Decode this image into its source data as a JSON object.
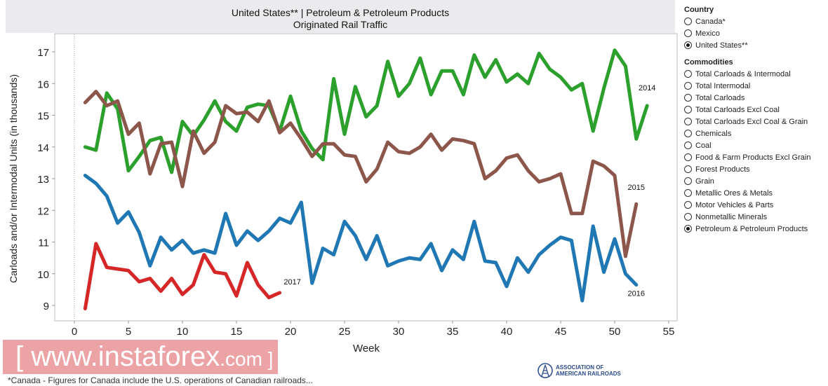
{
  "header": {
    "title_line1": "United States** | Petroleum & Petroleum Products",
    "title_line2": "Originated Rail Traffic"
  },
  "sidebar": {
    "country_title": "Country",
    "countries": [
      {
        "label": "Canada*",
        "selected": false
      },
      {
        "label": "Mexico",
        "selected": false
      },
      {
        "label": "United States**",
        "selected": true
      }
    ],
    "commodities_title": "Commodities",
    "commodities": [
      {
        "label": "Total Carloads & Intermodal",
        "selected": false
      },
      {
        "label": "Total Intermodal",
        "selected": false
      },
      {
        "label": "Total Carloads",
        "selected": false
      },
      {
        "label": "Total Carloads Excl Coal",
        "selected": false
      },
      {
        "label": "Total Carloads Excl Coal & Grain",
        "selected": false
      },
      {
        "label": "Chemicals",
        "selected": false
      },
      {
        "label": "Coal",
        "selected": false
      },
      {
        "label": "Food & Farm Products Excl Grain",
        "selected": false
      },
      {
        "label": "Forest Products",
        "selected": false
      },
      {
        "label": "Grain",
        "selected": false
      },
      {
        "label": "Metallic Ores & Metals",
        "selected": false
      },
      {
        "label": "Motor Vehicles & Parts",
        "selected": false
      },
      {
        "label": "Nonmetallic Minerals",
        "selected": false
      },
      {
        "label": "Petroleum & Petroleum Products",
        "selected": true
      }
    ]
  },
  "footer": {
    "footnote": "*Canada - Figures for Canada include the U.S. operations of Canadian railroads...",
    "logo_text_line1": "ASSOCIATION OF",
    "logo_text_line2": "AMERICAN RAILROADS",
    "watermark_main": "[ www.instaforex",
    "watermark_com": ".com ]"
  },
  "chart_data": {
    "type": "line",
    "title": "",
    "xlabel": "Week",
    "ylabel": "Carloads and/or Intermodal Units (in thousands)",
    "xlim": [
      -2,
      56
    ],
    "ylim": [
      8.6,
      17.5
    ],
    "xticks": [
      0,
      5,
      10,
      15,
      20,
      25,
      30,
      35,
      40,
      45,
      50,
      55
    ],
    "yticks": [
      9,
      10,
      11,
      12,
      13,
      14,
      15,
      16,
      17
    ],
    "grid": false,
    "series": [
      {
        "name": "2014",
        "color": "#2ca02c",
        "start_week": 1,
        "values": [
          14.0,
          13.9,
          15.7,
          15.2,
          13.25,
          13.7,
          14.2,
          14.3,
          13.2,
          14.8,
          14.35,
          14.85,
          15.45,
          14.8,
          14.5,
          15.25,
          15.35,
          15.3,
          14.5,
          15.6,
          14.5,
          13.95,
          13.6,
          16.15,
          14.4,
          15.9,
          14.95,
          15.3,
          16.7,
          15.6,
          16.0,
          16.8,
          15.65,
          16.4,
          16.4,
          15.65,
          16.9,
          16.2,
          16.75,
          16.05,
          16.3,
          16.0,
          16.95,
          16.45,
          16.2,
          15.8,
          16.0,
          14.5,
          15.85,
          17.05,
          16.55,
          14.25,
          15.3
        ]
      },
      {
        "name": "2015",
        "color": "#8c564b",
        "start_week": 1,
        "values": [
          15.4,
          15.75,
          15.3,
          15.45,
          14.4,
          14.75,
          13.15,
          14.1,
          14.15,
          12.75,
          14.5,
          13.8,
          14.15,
          15.3,
          15.05,
          15.1,
          14.8,
          15.45,
          14.45,
          14.75,
          14.25,
          13.7,
          14.1,
          14.1,
          13.75,
          13.7,
          12.9,
          13.3,
          14.15,
          13.85,
          13.8,
          14.0,
          14.4,
          13.9,
          14.25,
          14.2,
          14.1,
          13.0,
          13.25,
          13.65,
          13.75,
          13.25,
          12.9,
          13.0,
          13.15,
          11.9,
          11.9,
          13.55,
          13.4,
          13.1,
          10.55,
          12.2
        ]
      },
      {
        "name": "2016",
        "color": "#1f77b4",
        "start_week": 1,
        "values": [
          13.1,
          12.85,
          12.45,
          11.6,
          11.95,
          11.3,
          10.25,
          11.15,
          10.75,
          11.05,
          10.65,
          10.75,
          10.65,
          11.9,
          10.9,
          11.35,
          11.05,
          11.35,
          11.75,
          11.6,
          12.25,
          9.7,
          10.8,
          10.6,
          11.65,
          11.2,
          10.45,
          11.2,
          10.25,
          10.4,
          10.5,
          10.45,
          10.95,
          10.1,
          10.75,
          10.45,
          11.65,
          10.4,
          10.35,
          9.6,
          10.5,
          10.05,
          10.6,
          10.9,
          11.15,
          11.05,
          9.15,
          11.5,
          10.05,
          11.1,
          10.0,
          9.65
        ]
      },
      {
        "name": "2017",
        "color": "#d62728",
        "start_week": 1,
        "values": [
          8.9,
          10.95,
          10.2,
          10.15,
          10.1,
          9.75,
          9.85,
          9.45,
          9.85,
          9.35,
          9.65,
          10.6,
          10.05,
          10.0,
          9.3,
          10.35,
          9.65,
          9.25,
          9.4
        ]
      }
    ]
  }
}
